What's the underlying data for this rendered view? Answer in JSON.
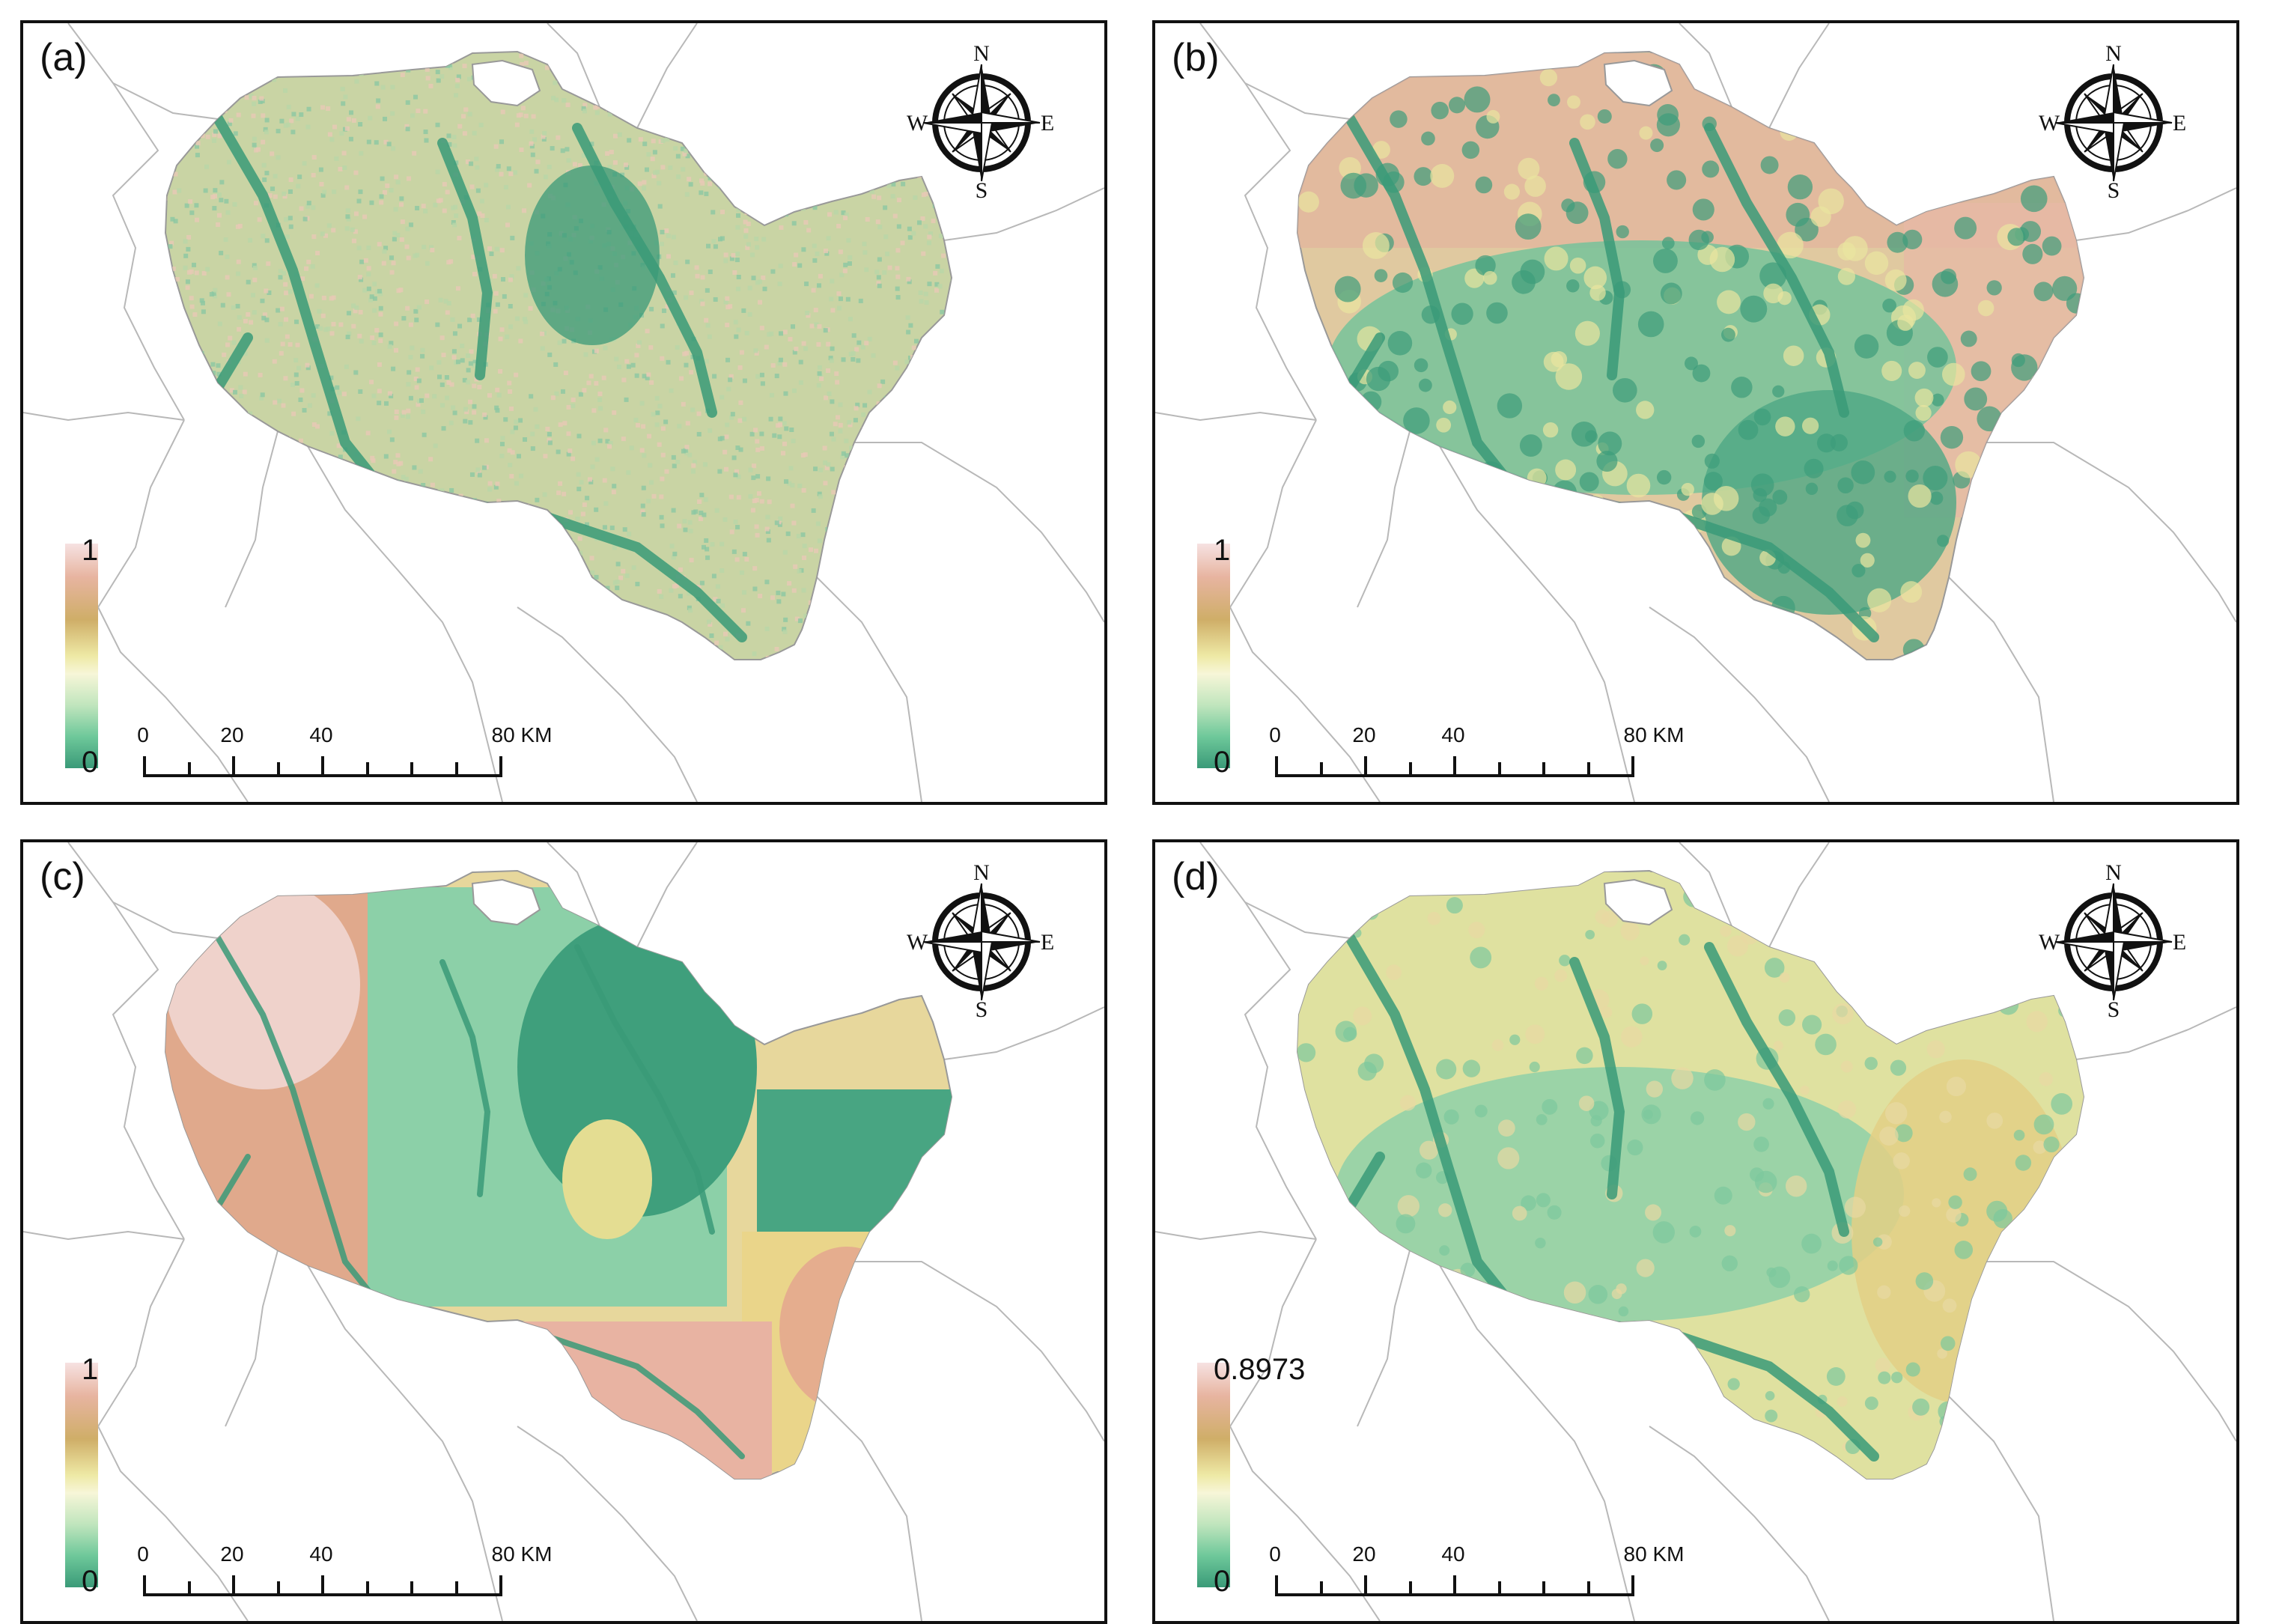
{
  "panels": [
    {
      "id": "a",
      "label": "(a)",
      "legend": {
        "max": "1",
        "min": "0"
      },
      "scheme": "a"
    },
    {
      "id": "b",
      "label": "(b)",
      "legend": {
        "max": "1",
        "min": "0"
      },
      "scheme": "b"
    },
    {
      "id": "c",
      "label": "(c)",
      "legend": {
        "max": "1",
        "min": "0"
      },
      "scheme": "c"
    },
    {
      "id": "d",
      "label": "(d)",
      "legend": {
        "max": "0.8973",
        "min": "0"
      },
      "scheme": "d"
    }
  ],
  "compass": {
    "n": "N",
    "s": "S",
    "e": "E",
    "w": "W"
  },
  "scalebar": {
    "labels": [
      "0",
      "20",
      "40",
      "80 KM"
    ],
    "unit": "KM"
  },
  "colors": {
    "high": "#e7b4a0",
    "mid_high": "#cfae68",
    "mid": "#eee9a5",
    "low_mid": "#a8dcb0",
    "low": "#3a9a78",
    "boundary": "#b8b8b8",
    "frame": "#111111"
  }
}
